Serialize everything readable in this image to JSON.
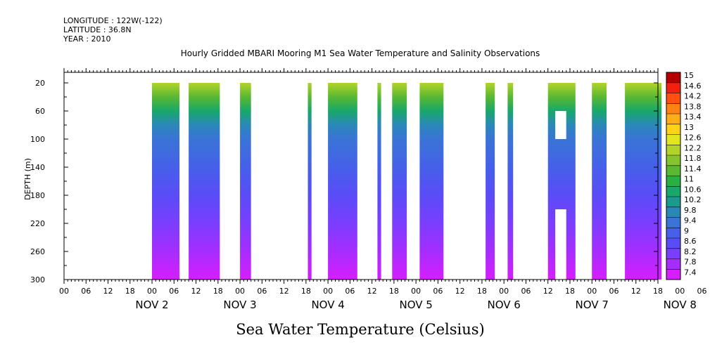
{
  "header": {
    "longitude": "LONGITUDE : 122W(-122)",
    "latitude": "LATITUDE : 36.8N",
    "year": "YEAR : 2010"
  },
  "chart_data": {
    "type": "heatmap",
    "title": "Hourly Gridded MBARI Mooring M1 Sea Water Temperature and Salinity Observations",
    "xlabel": "Sea Water Temperature (Celsius)",
    "ylabel": "DEPTH (m)",
    "x_unit": "hours since NOV 2 00:00",
    "xlim": [
      -18,
      144
    ],
    "ylim": [
      300,
      5
    ],
    "y_ticks": [
      20,
      60,
      100,
      140,
      180,
      220,
      260,
      300
    ],
    "x_tick_labels": [
      "00",
      "06",
      "12",
      "18",
      "00",
      "06",
      "12",
      "18",
      "00",
      "06",
      "12",
      "18",
      "00",
      "06",
      "12",
      "18",
      "00",
      "06",
      "12",
      "18",
      "00",
      "06",
      "12",
      "18",
      "00",
      "06",
      "12",
      "18",
      "00",
      "06",
      "12",
      "18"
    ],
    "day_labels": [
      "NOV 2",
      "NOV 3",
      "NOV 4",
      "NOV 5",
      "NOV 6",
      "NOV 7",
      "NOV 8"
    ],
    "colorbar": {
      "values": [
        "7.4",
        "7.8",
        "8.2",
        "8.6",
        "9",
        "9.4",
        "9.8",
        "10.2",
        "10.6",
        "11",
        "11.4",
        "11.8",
        "12.2",
        "12.6",
        "13",
        "13.4",
        "13.8",
        "14.2",
        "14.6",
        "15"
      ],
      "colors": [
        "#d61eff",
        "#a62dff",
        "#7a3eff",
        "#5a4cf7",
        "#4660ea",
        "#3a74d6",
        "#2a88b8",
        "#1c9a8e",
        "#18a86a",
        "#28b042",
        "#5ab832",
        "#86c42e",
        "#b2d42a",
        "#e2e61e",
        "#ffd21a",
        "#ffae1a",
        "#ff8214",
        "#ff5010",
        "#f2200c",
        "#b40000"
      ]
    },
    "blocks": [
      {
        "x0": 6,
        "x1": 13.5,
        "data_start": 20
      },
      {
        "x0": 16,
        "x1": 24.5,
        "data_start": 20
      },
      {
        "x0": 30,
        "x1": 33,
        "data_start": 20
      },
      {
        "x0": 48.5,
        "x1": 49.5,
        "data_start": 20
      },
      {
        "x0": 54,
        "x1": 62,
        "data_start": 20
      },
      {
        "x0": 67.5,
        "x1": 68.5,
        "data_start": 20
      },
      {
        "x0": 71.5,
        "x1": 75.5,
        "data_start": 20
      },
      {
        "x0": 79,
        "x1": 85.5,
        "data_start": 20
      },
      {
        "x0": 97,
        "x1": 99.5,
        "data_start": 20
      },
      {
        "x0": 103,
        "x1": 104.5,
        "data_start": 20
      },
      {
        "x0": 114,
        "x1": 121.5,
        "data_start": 20
      },
      {
        "x0": 126,
        "x1": 130,
        "data_start": 20
      },
      {
        "x0": 135,
        "x1": 145,
        "data_start": 20
      }
    ],
    "gaps": [
      {
        "x0": 116,
        "x1": 119,
        "y0": 60,
        "y1": 100
      },
      {
        "x0": 116,
        "x1": 119,
        "y0": 200,
        "y1": 300
      }
    ],
    "profile": [
      {
        "depth": 20,
        "value": 12.4
      },
      {
        "depth": 40,
        "value": 11.4
      },
      {
        "depth": 60,
        "value": 10.6
      },
      {
        "depth": 80,
        "value": 10.0
      },
      {
        "depth": 100,
        "value": 9.7
      },
      {
        "depth": 140,
        "value": 9.3
      },
      {
        "depth": 180,
        "value": 8.9
      },
      {
        "depth": 220,
        "value": 8.5
      },
      {
        "depth": 260,
        "value": 8.1
      },
      {
        "depth": 300,
        "value": 7.5
      }
    ]
  }
}
